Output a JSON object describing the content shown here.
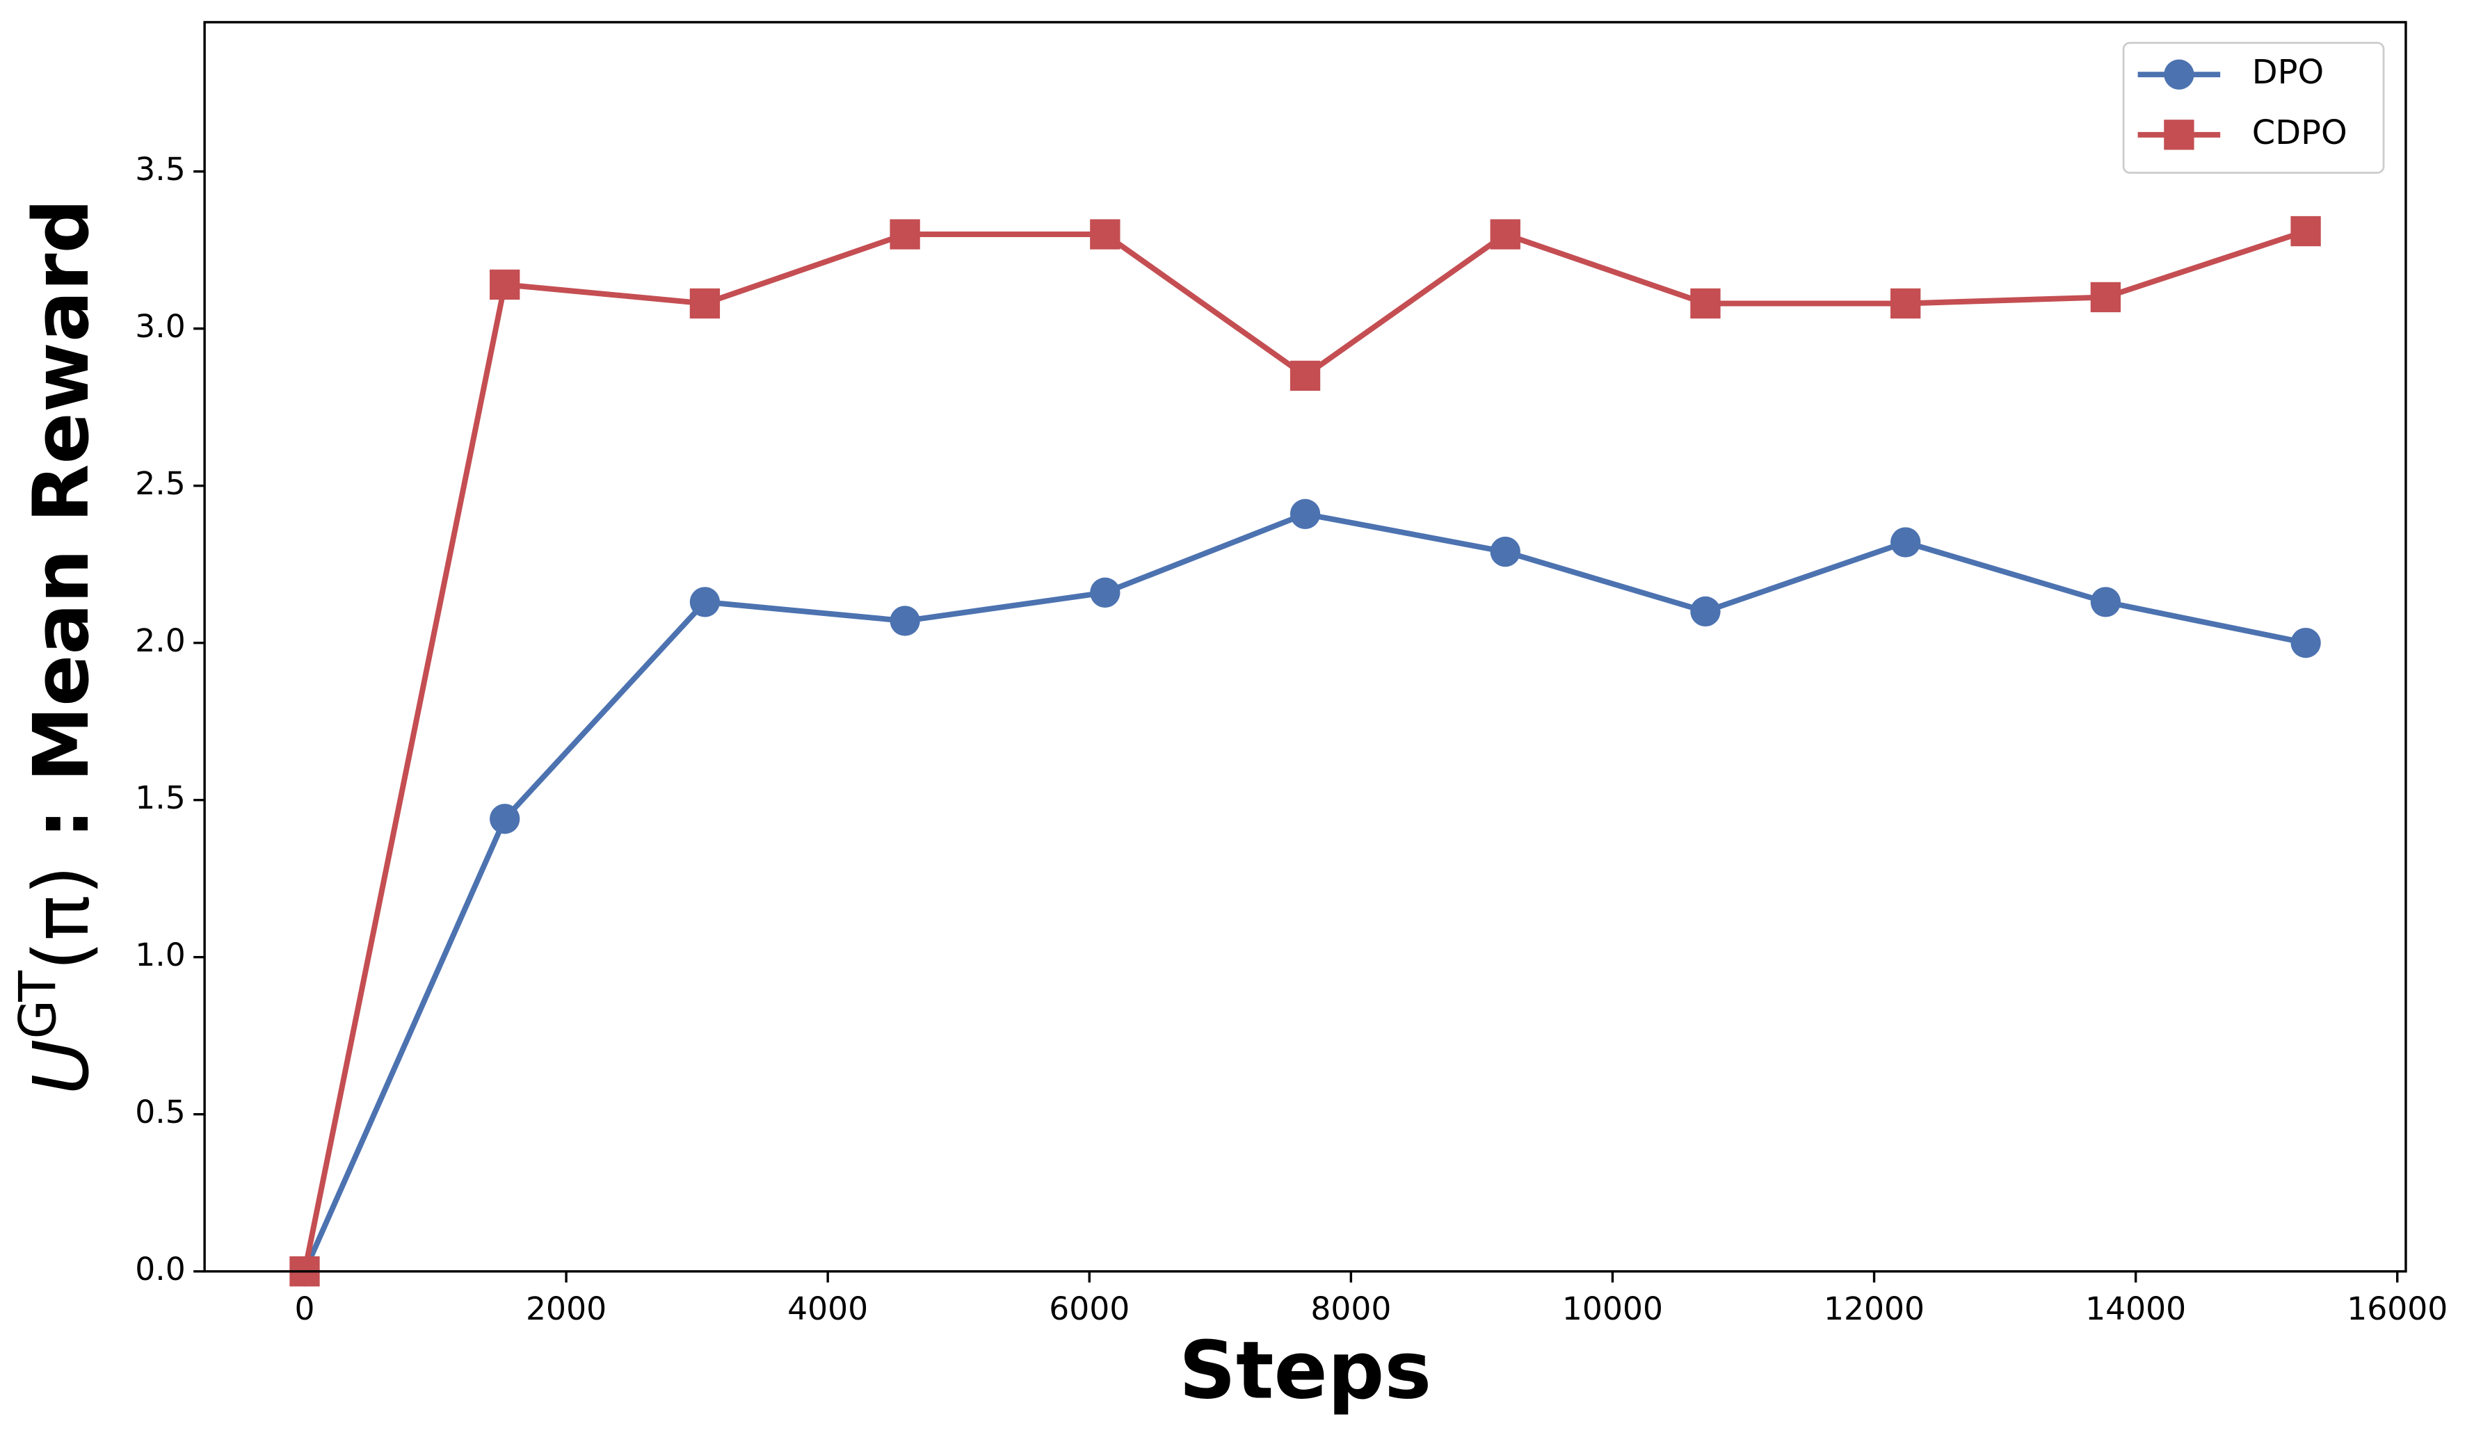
{
  "chart_data": {
    "type": "line",
    "xlabel": "Steps",
    "ylabel": {
      "symbol": "U",
      "superscript": "GT",
      "argument": "(π)",
      "text": " : Mean Reward"
    },
    "x": [
      0,
      1530,
      3060,
      4590,
      6120,
      7650,
      9180,
      10710,
      12240,
      13770,
      15300
    ],
    "series": [
      {
        "name": "DPO",
        "color": "#4c72b0",
        "marker": "circle",
        "values": [
          0,
          1.44,
          2.13,
          2.07,
          2.16,
          2.41,
          2.29,
          2.1,
          2.32,
          2.13,
          2.0
        ]
      },
      {
        "name": "CDPO",
        "color": "#c44e52",
        "marker": "square",
        "values": [
          0,
          3.14,
          3.08,
          3.3,
          3.3,
          2.85,
          3.3,
          3.08,
          3.08,
          3.1,
          3.31
        ]
      }
    ],
    "xlim": [
      -765,
      16065
    ],
    "ylim": [
      0,
      3.975
    ],
    "xticks": [
      0,
      2000,
      4000,
      6000,
      8000,
      10000,
      12000,
      14000,
      16000
    ],
    "yticks": [
      {
        "value": 0,
        "label": "0.0"
      },
      0.5,
      {
        "value": 1,
        "label": "1.0"
      },
      1.5,
      {
        "value": 2,
        "label": "2.0"
      },
      2.5,
      {
        "value": 3,
        "label": "3.0"
      },
      3.5
    ],
    "legend": "upper right",
    "grid": false
  }
}
